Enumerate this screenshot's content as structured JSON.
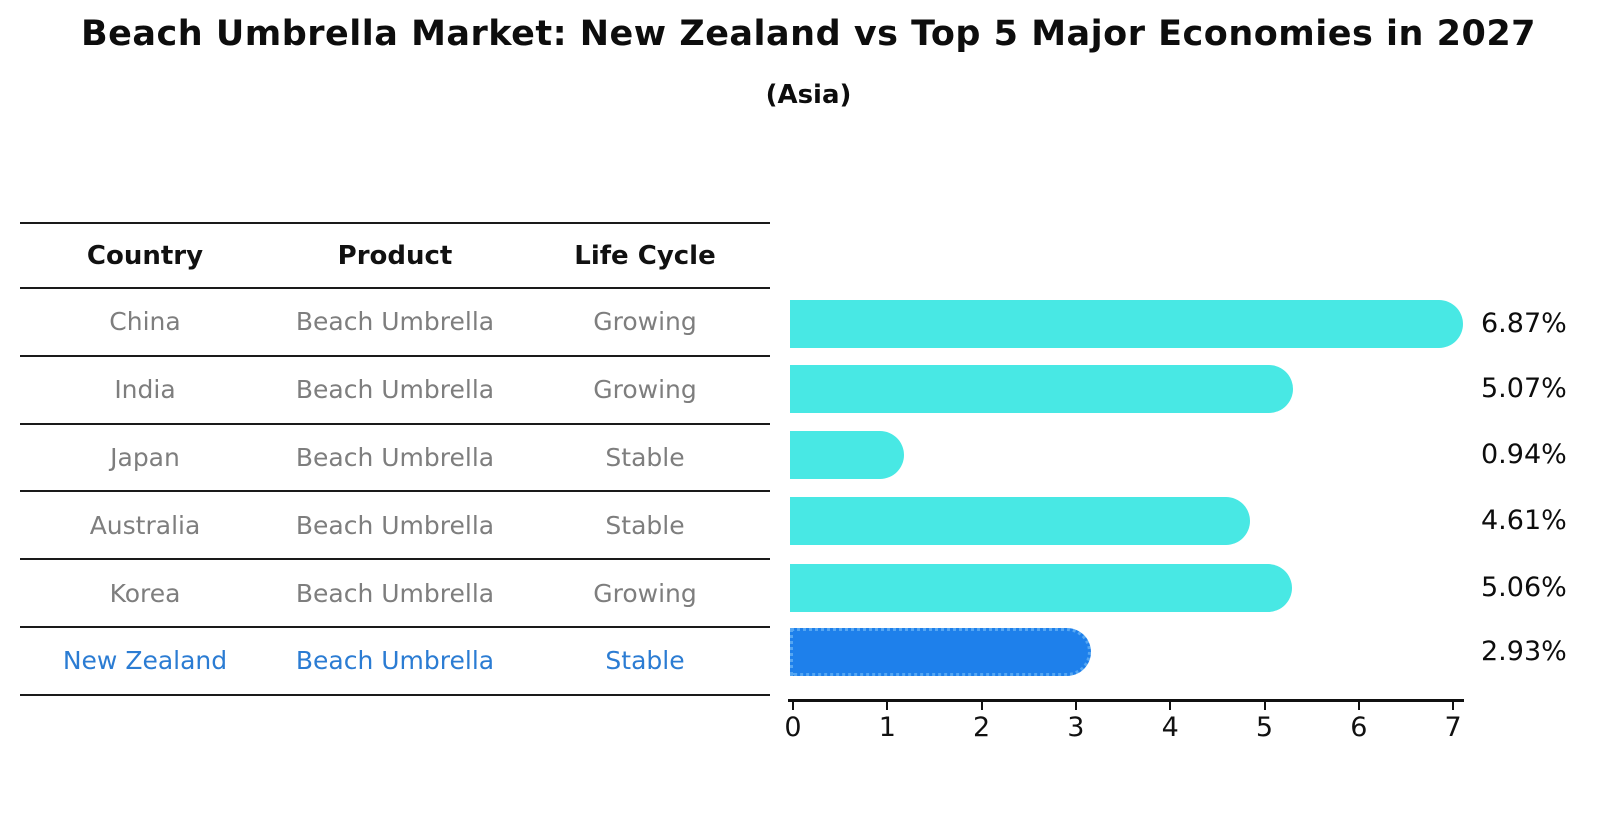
{
  "title": "Beach Umbrella Market: New Zealand vs Top 5 Major Economies in 2027",
  "subtitle": "(Asia)",
  "table": {
    "headers": [
      "Country",
      "Product",
      "Life Cycle"
    ],
    "rows": [
      {
        "country": "China",
        "product": "Beach Umbrella",
        "life_cycle": "Growing",
        "highlight": false
      },
      {
        "country": "India",
        "product": "Beach Umbrella",
        "life_cycle": "Growing",
        "highlight": false
      },
      {
        "country": "Japan",
        "product": "Beach Umbrella",
        "life_cycle": "Stable",
        "highlight": false
      },
      {
        "country": "Australia",
        "product": "Beach Umbrella",
        "life_cycle": "Stable",
        "highlight": false
      },
      {
        "country": "Korea",
        "product": "Beach Umbrella",
        "life_cycle": "Growing",
        "highlight": false
      },
      {
        "country": "New Zealand",
        "product": "Beach Umbrella",
        "life_cycle": "Stable",
        "highlight": true
      }
    ]
  },
  "chart_data": {
    "type": "bar",
    "orientation": "horizontal",
    "title": "Beach Umbrella Market: New Zealand vs Top 5 Major Economies in 2027",
    "subtitle": "(Asia)",
    "categories": [
      "China",
      "India",
      "Japan",
      "Australia",
      "Korea",
      "New Zealand"
    ],
    "values": [
      6.87,
      5.07,
      0.94,
      4.61,
      5.06,
      2.93
    ],
    "value_labels": [
      "6.87%",
      "5.07%",
      "0.94%",
      "4.61%",
      "5.06%",
      "2.93%"
    ],
    "xlim": [
      0,
      7
    ],
    "x_ticks": [
      "0",
      "1",
      "2",
      "3",
      "4",
      "5",
      "6",
      "7"
    ],
    "grid": false,
    "legend": "none",
    "highlight_index": 5
  },
  "colors": {
    "bar": "#48E8E4",
    "highlight_bar": "#1E80EB",
    "highlight_dot": "#55A6F2",
    "highlight_text": "#2B7CD3",
    "cell_text": "#7E7E7E"
  }
}
